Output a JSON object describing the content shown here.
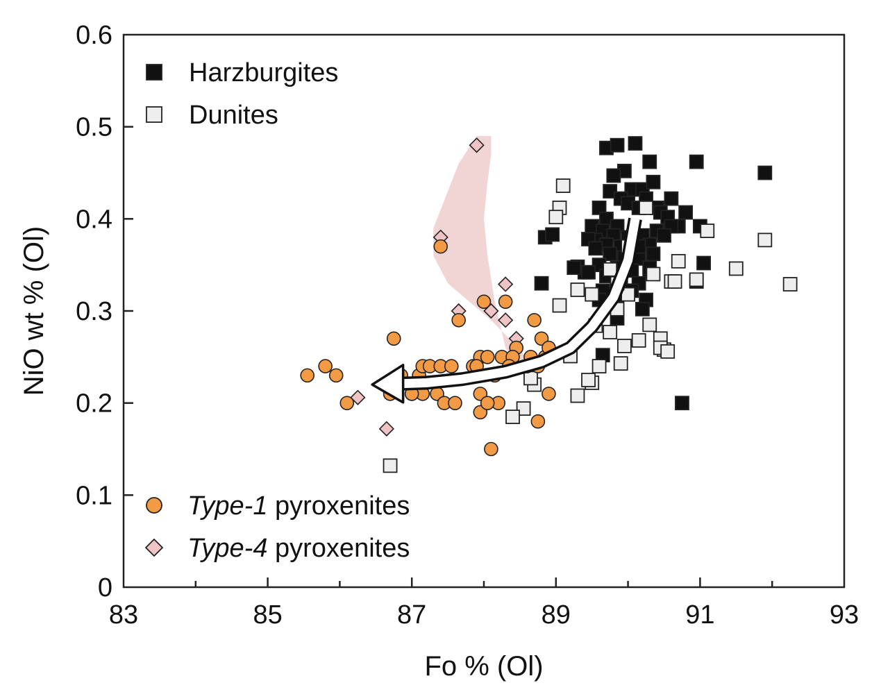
{
  "chart_data": {
    "type": "scatter",
    "xlabel": "Fo % (Ol)",
    "ylabel": "NiO wt % (Ol)",
    "xlim": [
      83,
      93
    ],
    "ylim": [
      0,
      0.6
    ],
    "x_ticks": [
      83,
      85,
      87,
      89,
      91,
      93
    ],
    "x_tick_labels": [
      "83",
      "85",
      "87",
      "89",
      "91",
      "93"
    ],
    "y_ticks": [
      0,
      0.1,
      0.2,
      0.3,
      0.4,
      0.5,
      0.6
    ],
    "y_tick_labels": [
      "0",
      "0.1",
      "0.2",
      "0.3",
      "0.4",
      "0.5",
      "0.6"
    ],
    "grid": false,
    "colors": {
      "harzburgite": "#111111",
      "dunite": "#eeeeee",
      "type1": "#f39a45",
      "type4": "#f0c4c4",
      "field": "#f1d4d4"
    },
    "field_polygon": {
      "x": [
        87.9,
        87.65,
        87.45,
        87.3,
        87.3,
        87.5,
        87.8,
        88.1,
        88.35,
        88.5,
        88.6,
        88.5,
        88.3,
        88.15,
        88.05,
        88.0,
        88.05,
        88.1,
        88.1,
        87.9
      ],
      "y": [
        0.49,
        0.46,
        0.42,
        0.39,
        0.36,
        0.33,
        0.31,
        0.29,
        0.27,
        0.26,
        0.245,
        0.235,
        0.26,
        0.31,
        0.36,
        0.4,
        0.44,
        0.47,
        0.49,
        0.49
      ]
    },
    "arrow": {
      "x": [
        90.1,
        90.0,
        89.8,
        89.5,
        89.2,
        88.8,
        88.3,
        87.7,
        87.2,
        86.85
      ],
      "y": [
        0.4,
        0.355,
        0.315,
        0.283,
        0.26,
        0.245,
        0.234,
        0.226,
        0.222,
        0.221
      ],
      "head_tip": [
        86.45,
        0.22
      ]
    },
    "legend": {
      "top": [
        {
          "label": "Harzburgites",
          "marker": "square-filled"
        },
        {
          "label": "Dunites",
          "marker": "square-open"
        }
      ],
      "bottom": [
        {
          "label_italic": "Type-1",
          "label_rest": " pyroxenites",
          "marker": "circle"
        },
        {
          "label_italic": "Type-4",
          "label_rest": " pyroxenites",
          "marker": "diamond"
        }
      ]
    },
    "series": [
      {
        "name": "Harzburgites",
        "marker": "square-filled",
        "x": [
          89.7,
          89.85,
          90.1,
          90.3,
          89.95,
          90.95,
          91.9,
          89.8,
          90.05,
          90.2,
          90.35,
          89.75,
          89.9,
          90.0,
          90.15,
          90.25,
          90.4,
          90.6,
          90.8,
          89.6,
          89.7,
          89.85,
          90.45,
          90.55,
          90.7,
          91.0,
          89.5,
          89.65,
          89.8,
          90.0,
          90.2,
          90.4,
          90.6,
          89.55,
          89.7,
          89.9,
          90.1,
          90.3,
          90.5,
          88.85,
          88.95,
          89.45,
          89.55,
          89.75,
          89.95,
          90.15,
          90.35,
          91.05,
          89.3,
          89.4,
          89.6,
          89.8,
          90.05,
          90.3,
          89.25,
          89.45,
          89.7,
          89.9,
          90.15,
          90.3,
          88.8,
          89.65,
          89.85,
          90.05,
          90.25,
          90.95,
          89.6,
          89.85,
          90.2,
          90.15,
          89.85,
          89.65,
          90.75
        ],
        "y": [
          0.477,
          0.48,
          0.482,
          0.462,
          0.452,
          0.462,
          0.45,
          0.447,
          0.432,
          0.432,
          0.44,
          0.43,
          0.422,
          0.417,
          0.412,
          0.422,
          0.412,
          0.422,
          0.407,
          0.412,
          0.4,
          0.392,
          0.407,
          0.402,
          0.392,
          0.392,
          0.392,
          0.387,
          0.382,
          0.38,
          0.382,
          0.387,
          0.392,
          0.377,
          0.372,
          0.37,
          0.362,
          0.372,
          0.382,
          0.38,
          0.383,
          0.378,
          0.368,
          0.362,
          0.358,
          0.357,
          0.362,
          0.352,
          0.348,
          0.342,
          0.35,
          0.342,
          0.344,
          0.342,
          0.347,
          0.342,
          0.338,
          0.332,
          0.33,
          0.347,
          0.33,
          0.322,
          0.317,
          0.322,
          0.312,
          0.332,
          0.312,
          0.292,
          0.302,
          0.37,
          0.347,
          0.252,
          0.2
        ]
      },
      {
        "name": "Dunites",
        "marker": "square-open",
        "x": [
          89.1,
          89.05,
          89.0,
          90.25,
          91.1,
          91.9,
          92.25,
          91.5,
          90.7,
          90.6,
          90.95,
          89.3,
          89.5,
          89.75,
          90.0,
          89.05,
          89.85,
          89.75,
          89.55,
          89.95,
          90.15,
          90.45,
          90.3,
          90.5,
          89.6,
          89.9,
          89.2,
          89.5,
          89.45,
          89.3,
          88.7,
          88.65,
          88.55,
          88.4,
          86.7,
          90.35,
          90.65,
          90.45,
          90.55,
          90.0,
          89.85
        ],
        "y": [
          0.436,
          0.412,
          0.402,
          0.412,
          0.387,
          0.377,
          0.329,
          0.346,
          0.354,
          0.332,
          0.334,
          0.323,
          0.318,
          0.345,
          0.318,
          0.306,
          0.302,
          0.277,
          0.284,
          0.262,
          0.268,
          0.27,
          0.285,
          0.258,
          0.24,
          0.243,
          0.251,
          0.222,
          0.225,
          0.208,
          0.22,
          0.227,
          0.194,
          0.185,
          0.132,
          0.34,
          0.332,
          0.26,
          0.256,
          0.37,
          0.33
        ]
      },
      {
        "name": "Type-1 pyroxenites",
        "marker": "circle",
        "x": [
          85.55,
          85.8,
          85.95,
          86.1,
          86.75,
          86.7,
          87.0,
          87.1,
          87.15,
          87.25,
          87.4,
          87.55,
          87.35,
          87.15,
          87.0,
          86.85,
          87.45,
          87.6,
          87.4,
          87.65,
          88.0,
          87.85,
          87.95,
          88.05,
          88.25,
          88.3,
          88.45,
          88.7,
          88.8,
          88.85,
          88.9,
          88.75,
          88.6,
          88.4,
          88.15,
          87.95,
          87.9,
          87.95,
          88.1,
          88.2,
          88.05,
          88.75,
          88.9,
          88.65,
          88.35
        ],
        "y": [
          0.23,
          0.24,
          0.23,
          0.2,
          0.27,
          0.21,
          0.21,
          0.23,
          0.24,
          0.24,
          0.24,
          0.24,
          0.21,
          0.21,
          0.21,
          0.23,
          0.2,
          0.2,
          0.37,
          0.29,
          0.31,
          0.24,
          0.25,
          0.25,
          0.25,
          0.31,
          0.26,
          0.29,
          0.27,
          0.25,
          0.21,
          0.18,
          0.24,
          0.25,
          0.23,
          0.21,
          0.24,
          0.19,
          0.15,
          0.2,
          0.2,
          0.24,
          0.26,
          0.25,
          0.24
        ]
      },
      {
        "name": "Type-4 pyroxenites",
        "marker": "diamond",
        "x": [
          87.9,
          87.4,
          88.3,
          87.65,
          88.1,
          88.3,
          88.45,
          86.25,
          86.65
        ],
        "y": [
          0.48,
          0.38,
          0.329,
          0.3,
          0.3,
          0.29,
          0.27,
          0.206,
          0.172
        ]
      }
    ]
  }
}
